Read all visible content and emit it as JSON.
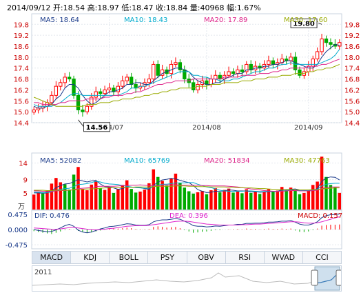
{
  "header": {
    "date": "2014/09/12",
    "open_label": "开:",
    "open": "18.54",
    "high_label": "高:",
    "high": "18.97",
    "low_label": "低:",
    "low": "18.47",
    "close_label": "收:",
    "close": "18.84",
    "volume_label": "量:",
    "volume": "40968",
    "change_label": "幅:",
    "change": "1.67%"
  },
  "price_ma": {
    "ma5": "MA5: 18.64",
    "ma10": "MA10: 18.43",
    "ma20": "MA20: 17.89",
    "ma30": "MA30: 17.60"
  },
  "volume_ma": {
    "unit": "万",
    "ma5": "MA5: 52082",
    "ma10": "MA10: 65769",
    "ma20": "MA20: 51834",
    "ma30": "MA30: 47763"
  },
  "macd_labels": {
    "dif": "DIF: 0.476",
    "dea": "DEA: 0.396",
    "macd": "MACD: 0.157"
  },
  "tabs": [
    "MACD",
    "KDJ",
    "BOLL",
    "PSY",
    "OBV",
    "RSI",
    "WVAD",
    "CCI"
  ],
  "active_tab": "MACD",
  "navigator": {
    "year_label": "2011"
  },
  "colors": {
    "up": "#ff0000",
    "down": "#00aa00",
    "ma5": "#1a3a8a",
    "ma10": "#00aacc",
    "ma20": "#dd2288",
    "ma30": "#99aa00",
    "dif": "#1a3a8a",
    "dea": "#dd22cc"
  },
  "chart_data": [
    {
      "type": "candlestick",
      "x_ticks": [
        "2014/07",
        "2014/08",
        "2014/09"
      ],
      "x_tick_index": [
        17,
        39,
        62
      ],
      "y_ticks": [
        "14.4",
        "15.0",
        "15.6",
        "16.2",
        "16.8",
        "17.4",
        "18.0",
        "18.6",
        "19.2",
        "19.8"
      ],
      "ylim": [
        14.4,
        20.0
      ],
      "annotations": [
        {
          "label": "19.80",
          "index": 65,
          "value": 19.8
        },
        {
          "label": "14.56",
          "index": 10,
          "value": 14.56
        }
      ],
      "close": [
        15.1,
        15.2,
        15.3,
        15.5,
        15.9,
        16.4,
        16.6,
        16.9,
        16.8,
        15.9,
        15.1,
        15.0,
        15.3,
        15.8,
        16.1,
        16.0,
        16.2,
        16.3,
        16.1,
        16.4,
        16.7,
        16.9,
        16.5,
        16.3,
        16.4,
        16.6,
        16.8,
        17.6,
        17.0,
        17.3,
        17.1,
        17.6,
        17.7,
        17.3,
        16.8,
        16.6,
        16.2,
        16.5,
        16.7,
        16.5,
        16.8,
        17.0,
        16.8,
        17.0,
        17.2,
        17.1,
        17.3,
        17.2,
        17.6,
        17.3,
        17.5,
        17.4,
        17.6,
        17.8,
        17.6,
        17.7,
        17.9,
        17.8,
        18.0,
        17.3,
        17.0,
        17.2,
        17.5,
        17.9,
        18.3,
        19.0,
        18.8,
        18.7,
        18.6,
        18.8
      ],
      "series": [
        {
          "name": "MA5",
          "values": [
            15.3,
            15.2,
            15.2,
            15.3,
            15.4,
            15.7,
            15.9,
            16.3,
            16.5,
            16.5,
            16.3,
            15.9,
            15.6,
            15.4,
            15.5,
            15.7,
            15.9,
            16.1,
            16.1,
            16.2,
            16.3,
            16.5,
            16.5,
            16.6,
            16.6,
            16.5,
            16.5,
            16.7,
            16.9,
            17.1,
            17.2,
            17.3,
            17.4,
            17.4,
            17.3,
            17.2,
            16.9,
            16.7,
            16.6,
            16.5,
            16.5,
            16.6,
            16.6,
            16.8,
            16.9,
            17.0,
            17.1,
            17.1,
            17.3,
            17.3,
            17.4,
            17.4,
            17.5,
            17.5,
            17.6,
            17.6,
            17.7,
            17.8,
            17.8,
            17.7,
            17.6,
            17.5,
            17.4,
            17.4,
            17.6,
            18.0,
            18.3,
            18.5,
            18.7,
            18.64
          ]
        },
        {
          "name": "MA10",
          "values": [
            15.4,
            15.3,
            15.3,
            15.3,
            15.3,
            15.4,
            15.5,
            15.7,
            15.9,
            16.0,
            16.0,
            15.9,
            15.9,
            15.9,
            15.9,
            15.9,
            15.9,
            15.9,
            15.9,
            15.9,
            16.0,
            16.1,
            16.3,
            16.3,
            16.4,
            16.4,
            16.5,
            16.6,
            16.7,
            16.8,
            16.9,
            17.0,
            17.1,
            17.2,
            17.2,
            17.2,
            17.0,
            17.0,
            16.9,
            16.9,
            16.8,
            16.8,
            16.7,
            16.7,
            16.7,
            16.8,
            16.8,
            16.9,
            17.0,
            17.1,
            17.2,
            17.2,
            17.3,
            17.4,
            17.4,
            17.5,
            17.6,
            17.6,
            17.7,
            17.6,
            17.6,
            17.6,
            17.6,
            17.6,
            17.6,
            17.7,
            17.8,
            17.9,
            18.1,
            18.43
          ]
        },
        {
          "name": "MA20",
          "values": [
            15.5,
            15.5,
            15.4,
            15.4,
            15.4,
            15.4,
            15.5,
            15.5,
            15.6,
            15.6,
            15.6,
            15.6,
            15.7,
            15.7,
            15.7,
            15.7,
            15.8,
            15.8,
            15.9,
            15.9,
            15.9,
            16.0,
            16.0,
            16.1,
            16.1,
            16.2,
            16.3,
            16.4,
            16.5,
            16.5,
            16.6,
            16.6,
            16.7,
            16.7,
            16.7,
            16.7,
            16.8,
            16.8,
            16.8,
            16.8,
            16.8,
            16.8,
            16.8,
            16.9,
            16.9,
            16.9,
            16.9,
            17.0,
            17.0,
            17.0,
            17.0,
            17.1,
            17.1,
            17.1,
            17.2,
            17.2,
            17.3,
            17.3,
            17.4,
            17.4,
            17.4,
            17.4,
            17.5,
            17.5,
            17.5,
            17.6,
            17.6,
            17.7,
            17.8,
            17.89
          ]
        },
        {
          "name": "MA30",
          "values": [
            15.8,
            15.7,
            15.6,
            15.5,
            15.4,
            15.3,
            15.3,
            15.3,
            15.3,
            15.3,
            15.3,
            15.3,
            15.4,
            15.4,
            15.4,
            15.5,
            15.5,
            15.5,
            15.6,
            15.6,
            15.7,
            15.7,
            15.7,
            15.8,
            15.8,
            15.9,
            15.9,
            16.0,
            16.0,
            16.1,
            16.1,
            16.2,
            16.2,
            16.3,
            16.3,
            16.3,
            16.3,
            16.4,
            16.4,
            16.4,
            16.5,
            16.5,
            16.5,
            16.6,
            16.6,
            16.6,
            16.6,
            16.7,
            16.7,
            16.7,
            16.8,
            16.8,
            16.8,
            16.9,
            16.9,
            16.9,
            17.0,
            17.0,
            17.0,
            17.1,
            17.1,
            17.1,
            17.2,
            17.2,
            17.3,
            17.3,
            17.4,
            17.4,
            17.5,
            17.6
          ]
        }
      ]
    },
    {
      "type": "bar",
      "y_ticks": [
        "5",
        "9",
        "14"
      ],
      "ylim": [
        0,
        17
      ],
      "values": [
        4.5,
        5.2,
        4.8,
        5.5,
        7.8,
        9.5,
        8.2,
        7.6,
        6.0,
        10.5,
        12.8,
        6.2,
        5.8,
        7.5,
        8.6,
        6.4,
        5.9,
        6.8,
        5.0,
        6.2,
        7.4,
        8.8,
        6.2,
        5.1,
        5.4,
        6.0,
        7.9,
        12.1,
        9.8,
        8.6,
        7.2,
        9.4,
        10.8,
        8.0,
        6.6,
        5.5,
        4.8,
        5.2,
        5.6,
        4.6,
        5.8,
        6.4,
        5.2,
        5.9,
        6.3,
        5.1,
        5.6,
        4.9,
        6.1,
        5.0,
        5.4,
        4.7,
        5.5,
        6.2,
        5.3,
        5.7,
        6.8,
        5.9,
        6.6,
        5.8,
        4.6,
        5.0,
        5.9,
        7.4,
        8.4,
        15.9,
        9.8,
        7.4,
        6.8,
        5.0
      ],
      "up": [
        1,
        1,
        0,
        1,
        1,
        1,
        1,
        0,
        0,
        0,
        1,
        1,
        1,
        1,
        1,
        0,
        1,
        1,
        0,
        1,
        1,
        1,
        0,
        0,
        1,
        1,
        1,
        1,
        0,
        1,
        0,
        1,
        1,
        0,
        0,
        0,
        0,
        1,
        1,
        0,
        1,
        1,
        0,
        1,
        1,
        0,
        1,
        0,
        1,
        0,
        1,
        0,
        1,
        1,
        0,
        1,
        1,
        0,
        1,
        0,
        0,
        1,
        1,
        1,
        1,
        1,
        0,
        0,
        0,
        1
      ],
      "series": [
        {
          "name": "MA5",
          "values": [
            5.0,
            5.0,
            4.9,
            5.0,
            5.6,
            6.6,
            7.2,
            7.7,
            7.8,
            8.4,
            9.0,
            8.6,
            8.3,
            8.6,
            8.8,
            7.7,
            6.9,
            6.8,
            6.5,
            6.1,
            6.3,
            6.8,
            6.7,
            6.7,
            6.6,
            6.3,
            6.1,
            7.3,
            8.2,
            8.9,
            9.1,
            9.4,
            9.2,
            8.8,
            8.4,
            8.1,
            7.2,
            6.0,
            5.5,
            5.1,
            5.2,
            5.5,
            5.5,
            5.6,
            5.9,
            5.8,
            5.6,
            5.6,
            5.6,
            5.3,
            5.4,
            5.2,
            5.3,
            5.4,
            5.4,
            5.5,
            5.9,
            6.0,
            6.1,
            6.2,
            5.9,
            5.6,
            5.6,
            5.7,
            6.3,
            8.5,
            9.5,
            9.8,
            9.7,
            8.9
          ]
        },
        {
          "name": "MA10",
          "values": [
            5.2,
            5.2,
            5.1,
            5.1,
            5.3,
            5.8,
            6.1,
            6.3,
            6.4,
            6.9,
            7.5,
            7.6,
            7.8,
            8.1,
            8.5,
            8.3,
            7.9,
            7.7,
            7.6,
            7.5,
            7.2,
            7.0,
            6.8,
            6.6,
            6.5,
            6.4,
            6.4,
            6.9,
            7.3,
            7.6,
            7.6,
            7.8,
            8.0,
            8.0,
            8.0,
            8.1,
            8.1,
            7.6,
            7.2,
            6.8,
            6.6,
            6.2,
            5.8,
            5.6,
            5.5,
            5.5,
            5.5,
            5.5,
            5.6,
            5.6,
            5.5,
            5.4,
            5.4,
            5.5,
            5.4,
            5.4,
            5.6,
            5.7,
            5.8,
            5.8,
            5.7,
            5.7,
            5.8,
            5.9,
            6.1,
            7.1,
            7.6,
            7.8,
            7.9,
            7.9
          ]
        },
        {
          "name": "MA20",
          "values": [
            5.6,
            5.6,
            5.5,
            5.5,
            5.5,
            5.6,
            5.7,
            5.7,
            5.8,
            6.0,
            6.3,
            6.4,
            6.5,
            6.6,
            6.9,
            7.0,
            7.0,
            7.0,
            7.0,
            7.1,
            7.2,
            7.2,
            7.3,
            7.3,
            7.4,
            7.3,
            7.2,
            7.2,
            7.2,
            7.4,
            7.4,
            7.4,
            7.5,
            7.3,
            7.3,
            7.3,
            7.3,
            7.3,
            7.2,
            7.2,
            7.1,
            7.1,
            7.1,
            7.1,
            7.0,
            6.9,
            6.8,
            6.6,
            6.4,
            6.2,
            6.1,
            5.9,
            5.7,
            5.6,
            5.5,
            5.5,
            5.5,
            5.6,
            5.7,
            5.7,
            5.6,
            5.6,
            5.6,
            5.7,
            5.8,
            6.3,
            6.6,
            6.8,
            6.8,
            6.8
          ]
        },
        {
          "name": "MA30",
          "values": [
            5.8,
            5.8,
            5.8,
            5.7,
            5.7,
            5.8,
            5.8,
            5.8,
            5.8,
            5.9,
            6.0,
            6.1,
            6.2,
            6.2,
            6.3,
            6.4,
            6.5,
            6.5,
            6.6,
            6.6,
            6.6,
            6.7,
            6.7,
            6.8,
            6.8,
            6.8,
            6.8,
            6.9,
            7.0,
            7.0,
            7.0,
            7.0,
            7.1,
            7.1,
            7.1,
            7.0,
            7.0,
            6.9,
            6.9,
            6.9,
            6.8,
            6.8,
            6.8,
            6.8,
            6.7,
            6.7,
            6.6,
            6.6,
            6.5,
            6.5,
            6.4,
            6.3,
            6.3,
            6.2,
            6.1,
            6.1,
            6.0,
            6.0,
            6.0,
            5.9,
            5.9,
            5.9,
            5.9,
            6.0,
            6.0,
            6.2,
            6.3,
            6.4,
            6.5,
            6.5
          ]
        }
      ]
    },
    {
      "type": "bar+line",
      "y_ticks": [
        "0.475",
        "0.000",
        "-0.475"
      ],
      "ylim": [
        -0.6,
        0.6
      ],
      "macd": [
        -0.05,
        -0.08,
        -0.1,
        -0.12,
        -0.14,
        -0.1,
        -0.06,
        -0.02,
        0.02,
        0.0,
        -0.04,
        -0.08,
        -0.1,
        -0.09,
        -0.06,
        -0.03,
        -0.01,
        0.02,
        0.03,
        0.03,
        0.04,
        0.06,
        0.04,
        0.02,
        0.01,
        0.01,
        0.02,
        0.08,
        0.1,
        0.08,
        0.06,
        0.07,
        0.08,
        0.04,
        -0.02,
        -0.06,
        -0.1,
        -0.09,
        -0.07,
        -0.06,
        -0.04,
        -0.02,
        -0.02,
        0.0,
        0.01,
        0.01,
        0.02,
        0.01,
        0.03,
        0.02,
        0.02,
        0.01,
        0.02,
        0.03,
        0.02,
        0.02,
        0.03,
        0.02,
        0.03,
        -0.03,
        -0.07,
        -0.08,
        -0.06,
        -0.02,
        0.03,
        0.12,
        0.14,
        0.15,
        0.15,
        0.157
      ],
      "series": [
        {
          "name": "DIF",
          "values": [
            0.0,
            -0.03,
            -0.05,
            -0.07,
            -0.06,
            -0.01,
            0.05,
            0.12,
            0.16,
            0.1,
            -0.02,
            -0.08,
            -0.1,
            -0.08,
            -0.03,
            0.02,
            0.05,
            0.09,
            0.1,
            0.12,
            0.15,
            0.18,
            0.17,
            0.14,
            0.13,
            0.13,
            0.15,
            0.24,
            0.28,
            0.3,
            0.3,
            0.32,
            0.34,
            0.32,
            0.26,
            0.2,
            0.12,
            0.1,
            0.1,
            0.08,
            0.09,
            0.11,
            0.1,
            0.12,
            0.14,
            0.14,
            0.16,
            0.16,
            0.19,
            0.19,
            0.2,
            0.2,
            0.21,
            0.23,
            0.23,
            0.24,
            0.26,
            0.26,
            0.28,
            0.23,
            0.17,
            0.14,
            0.14,
            0.18,
            0.24,
            0.37,
            0.43,
            0.46,
            0.47,
            0.476
          ]
        },
        {
          "name": "DEA",
          "values": [
            0.05,
            0.04,
            0.03,
            0.02,
            0.01,
            0.01,
            0.02,
            0.04,
            0.06,
            0.07,
            0.05,
            0.03,
            0.01,
            0.0,
            -0.01,
            0.0,
            0.01,
            0.03,
            0.04,
            0.06,
            0.08,
            0.1,
            0.11,
            0.12,
            0.12,
            0.12,
            0.13,
            0.15,
            0.17,
            0.19,
            0.21,
            0.23,
            0.25,
            0.26,
            0.26,
            0.25,
            0.23,
            0.21,
            0.19,
            0.17,
            0.16,
            0.15,
            0.14,
            0.14,
            0.14,
            0.14,
            0.14,
            0.15,
            0.15,
            0.16,
            0.17,
            0.17,
            0.18,
            0.19,
            0.2,
            0.21,
            0.22,
            0.23,
            0.24,
            0.24,
            0.23,
            0.21,
            0.2,
            0.2,
            0.21,
            0.24,
            0.28,
            0.32,
            0.36,
            0.396
          ]
        }
      ]
    }
  ]
}
